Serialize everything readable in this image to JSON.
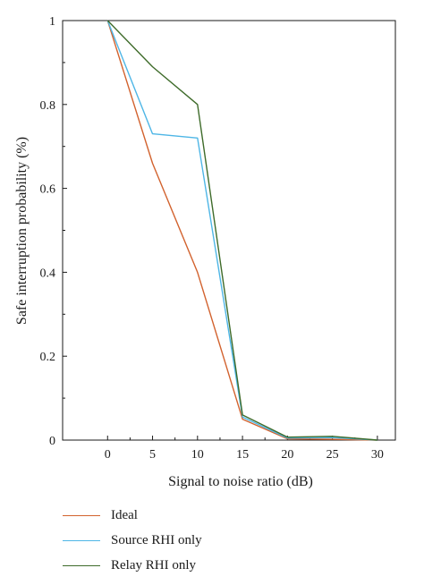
{
  "chart_data": {
    "type": "line",
    "title": "",
    "xlabel": "Signal to noise ratio (dB)",
    "ylabel": "Safe interruption probability (%)",
    "xlim": [
      -5,
      32
    ],
    "ylim": [
      0,
      1
    ],
    "x_ticks": [
      0,
      5,
      10,
      15,
      20,
      25,
      30
    ],
    "y_ticks": [
      0,
      0.2,
      0.4,
      0.6,
      0.8,
      1
    ],
    "x_tick_labels": [
      "0",
      "5",
      "10",
      "15",
      "20",
      "25",
      "30"
    ],
    "y_tick_labels": [
      "0",
      "0.2",
      "0.4",
      "0.6",
      "0.8",
      "1"
    ],
    "grid": false,
    "legend_position": "below",
    "x": [
      0,
      5,
      10,
      15,
      20,
      25,
      30
    ],
    "series": [
      {
        "name": "Ideal",
        "color": "#d2622e",
        "values": [
          1.0,
          0.66,
          0.4,
          0.05,
          0.003,
          0.002,
          0.0
        ]
      },
      {
        "name": "Source RHI only",
        "color": "#4eb6e6",
        "values": [
          1.0,
          0.73,
          0.72,
          0.055,
          0.005,
          0.006,
          0.0
        ]
      },
      {
        "name": "Relay RHI only",
        "color": "#3e6b2a",
        "values": [
          1.0,
          0.89,
          0.8,
          0.06,
          0.007,
          0.009,
          0.0
        ]
      }
    ]
  }
}
